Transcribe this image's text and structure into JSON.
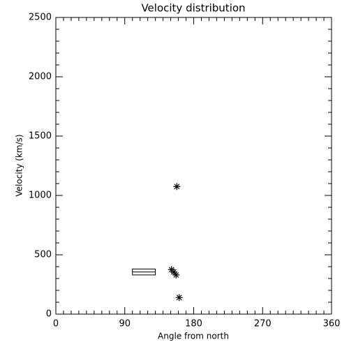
{
  "chart_data": {
    "type": "scatter",
    "title": "Velocity distribution",
    "x_label": "Angle from north",
    "y_label": "Velocity (km/s)",
    "x": [
      158,
      151,
      154,
      157,
      161
    ],
    "values": [
      1075,
      375,
      355,
      330,
      140
    ],
    "box": {
      "x": [
        100,
        130
      ],
      "y": [
        330,
        380
      ]
    },
    "xlim": [
      0,
      360
    ],
    "xticks": [
      0,
      90,
      180,
      270,
      360
    ],
    "ylim": [
      0,
      2500
    ],
    "yticks": [
      0,
      500,
      1000,
      1500,
      2000,
      2500
    ],
    "color": "#000000"
  }
}
